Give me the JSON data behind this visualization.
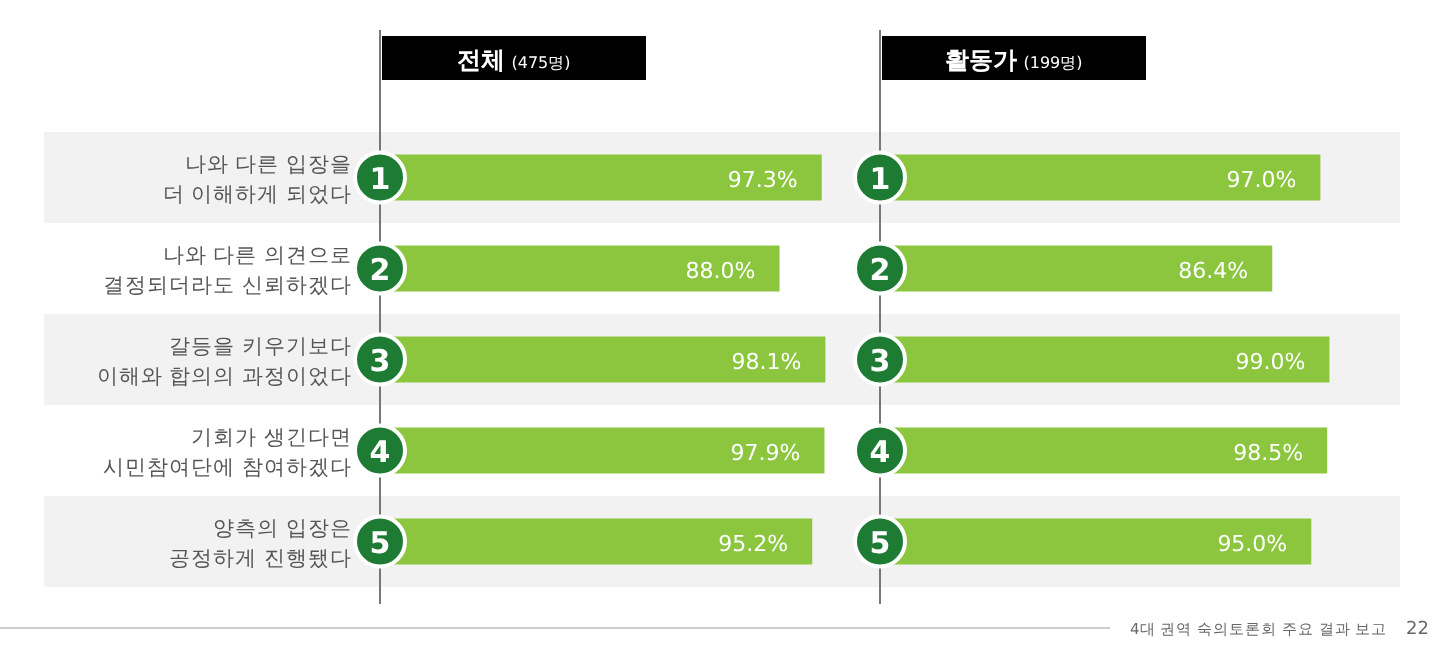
{
  "chart_data": [
    {
      "type": "bar",
      "orientation": "horizontal",
      "title": "전체",
      "subtitle": "(475명)",
      "categories": [
        "나와 다른 입장을\n더 이해하게 되었다",
        "나와 다른 의견으로\n결정되더라도 신뢰하겠다",
        "갈등을 키우기보다\n이해와 합의의 과정이었다",
        "기회가 생긴다면\n시민참여단에 참여하겠다",
        "양측의 입장은\n공정하게 진행됐다"
      ],
      "values": [
        97.3,
        88.0,
        98.1,
        97.9,
        95.2
      ],
      "value_labels": [
        "97.3%",
        "88.0%",
        "98.1%",
        "97.9%",
        "95.2%"
      ],
      "color": "#8cc63f",
      "annotations": [
        "1",
        "2",
        "3",
        "4",
        "5"
      ]
    },
    {
      "type": "bar",
      "orientation": "horizontal",
      "title": "활동가",
      "subtitle": "(199명)",
      "categories": [
        null,
        null,
        null,
        null,
        null
      ],
      "values": [
        97.0,
        86.4,
        99.0,
        98.5,
        95.0
      ],
      "value_labels": [
        "97.0%",
        "86.4%",
        "99.0%",
        "98.5%",
        "95.0%"
      ],
      "color": "#8cc63f",
      "annotations": [
        "1",
        "2",
        "3",
        "4",
        "5",
        "4대 권역 숙의토론회 주요 결과 보고",
        "22"
      ]
    }
  ]
}
